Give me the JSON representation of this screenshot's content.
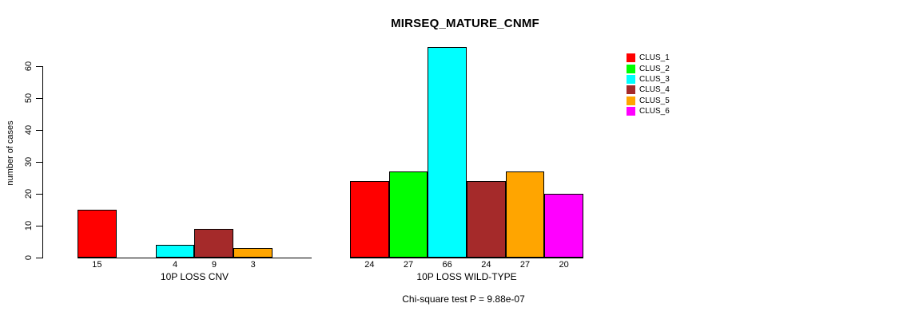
{
  "title": "MIRSEQ_MATURE_CNMF",
  "y_axis": {
    "label": "number of cases",
    "ticks": [
      0,
      10,
      20,
      30,
      40,
      50,
      60
    ]
  },
  "annotation": "Chi-square test P = 9.88e-07",
  "chart_data": {
    "type": "bar",
    "title": "MIRSEQ_MATURE_CNMF",
    "xlabel": "",
    "ylabel": "number of cases",
    "ylim": [
      0,
      66
    ],
    "yticks": [
      0,
      10,
      20,
      30,
      40,
      50,
      60
    ],
    "grid": false,
    "legend_position": "right",
    "categories": [
      "10P LOSS CNV",
      "10P LOSS WILD-TYPE"
    ],
    "series": [
      {
        "name": "CLUS_1",
        "color": "#FF0000",
        "values": [
          15,
          24
        ]
      },
      {
        "name": "CLUS_2",
        "color": "#00FF00",
        "values": [
          0,
          27
        ]
      },
      {
        "name": "CLUS_3",
        "color": "#00FFFF",
        "values": [
          4,
          66
        ]
      },
      {
        "name": "CLUS_4",
        "color": "#A52A2A",
        "values": [
          9,
          24
        ]
      },
      {
        "name": "CLUS_5",
        "color": "#FFA500",
        "values": [
          3,
          27
        ]
      },
      {
        "name": "CLUS_6",
        "color": "#FF00FF",
        "values": [
          0,
          20
        ]
      }
    ],
    "bar_value_labels": {
      "10P LOSS CNV": [
        15,
        null,
        4,
        9,
        3,
        null
      ],
      "10P LOSS WILD-TYPE": [
        24,
        27,
        66,
        24,
        27,
        20
      ]
    },
    "annotation": "Chi-square test P = 9.88e-07"
  }
}
